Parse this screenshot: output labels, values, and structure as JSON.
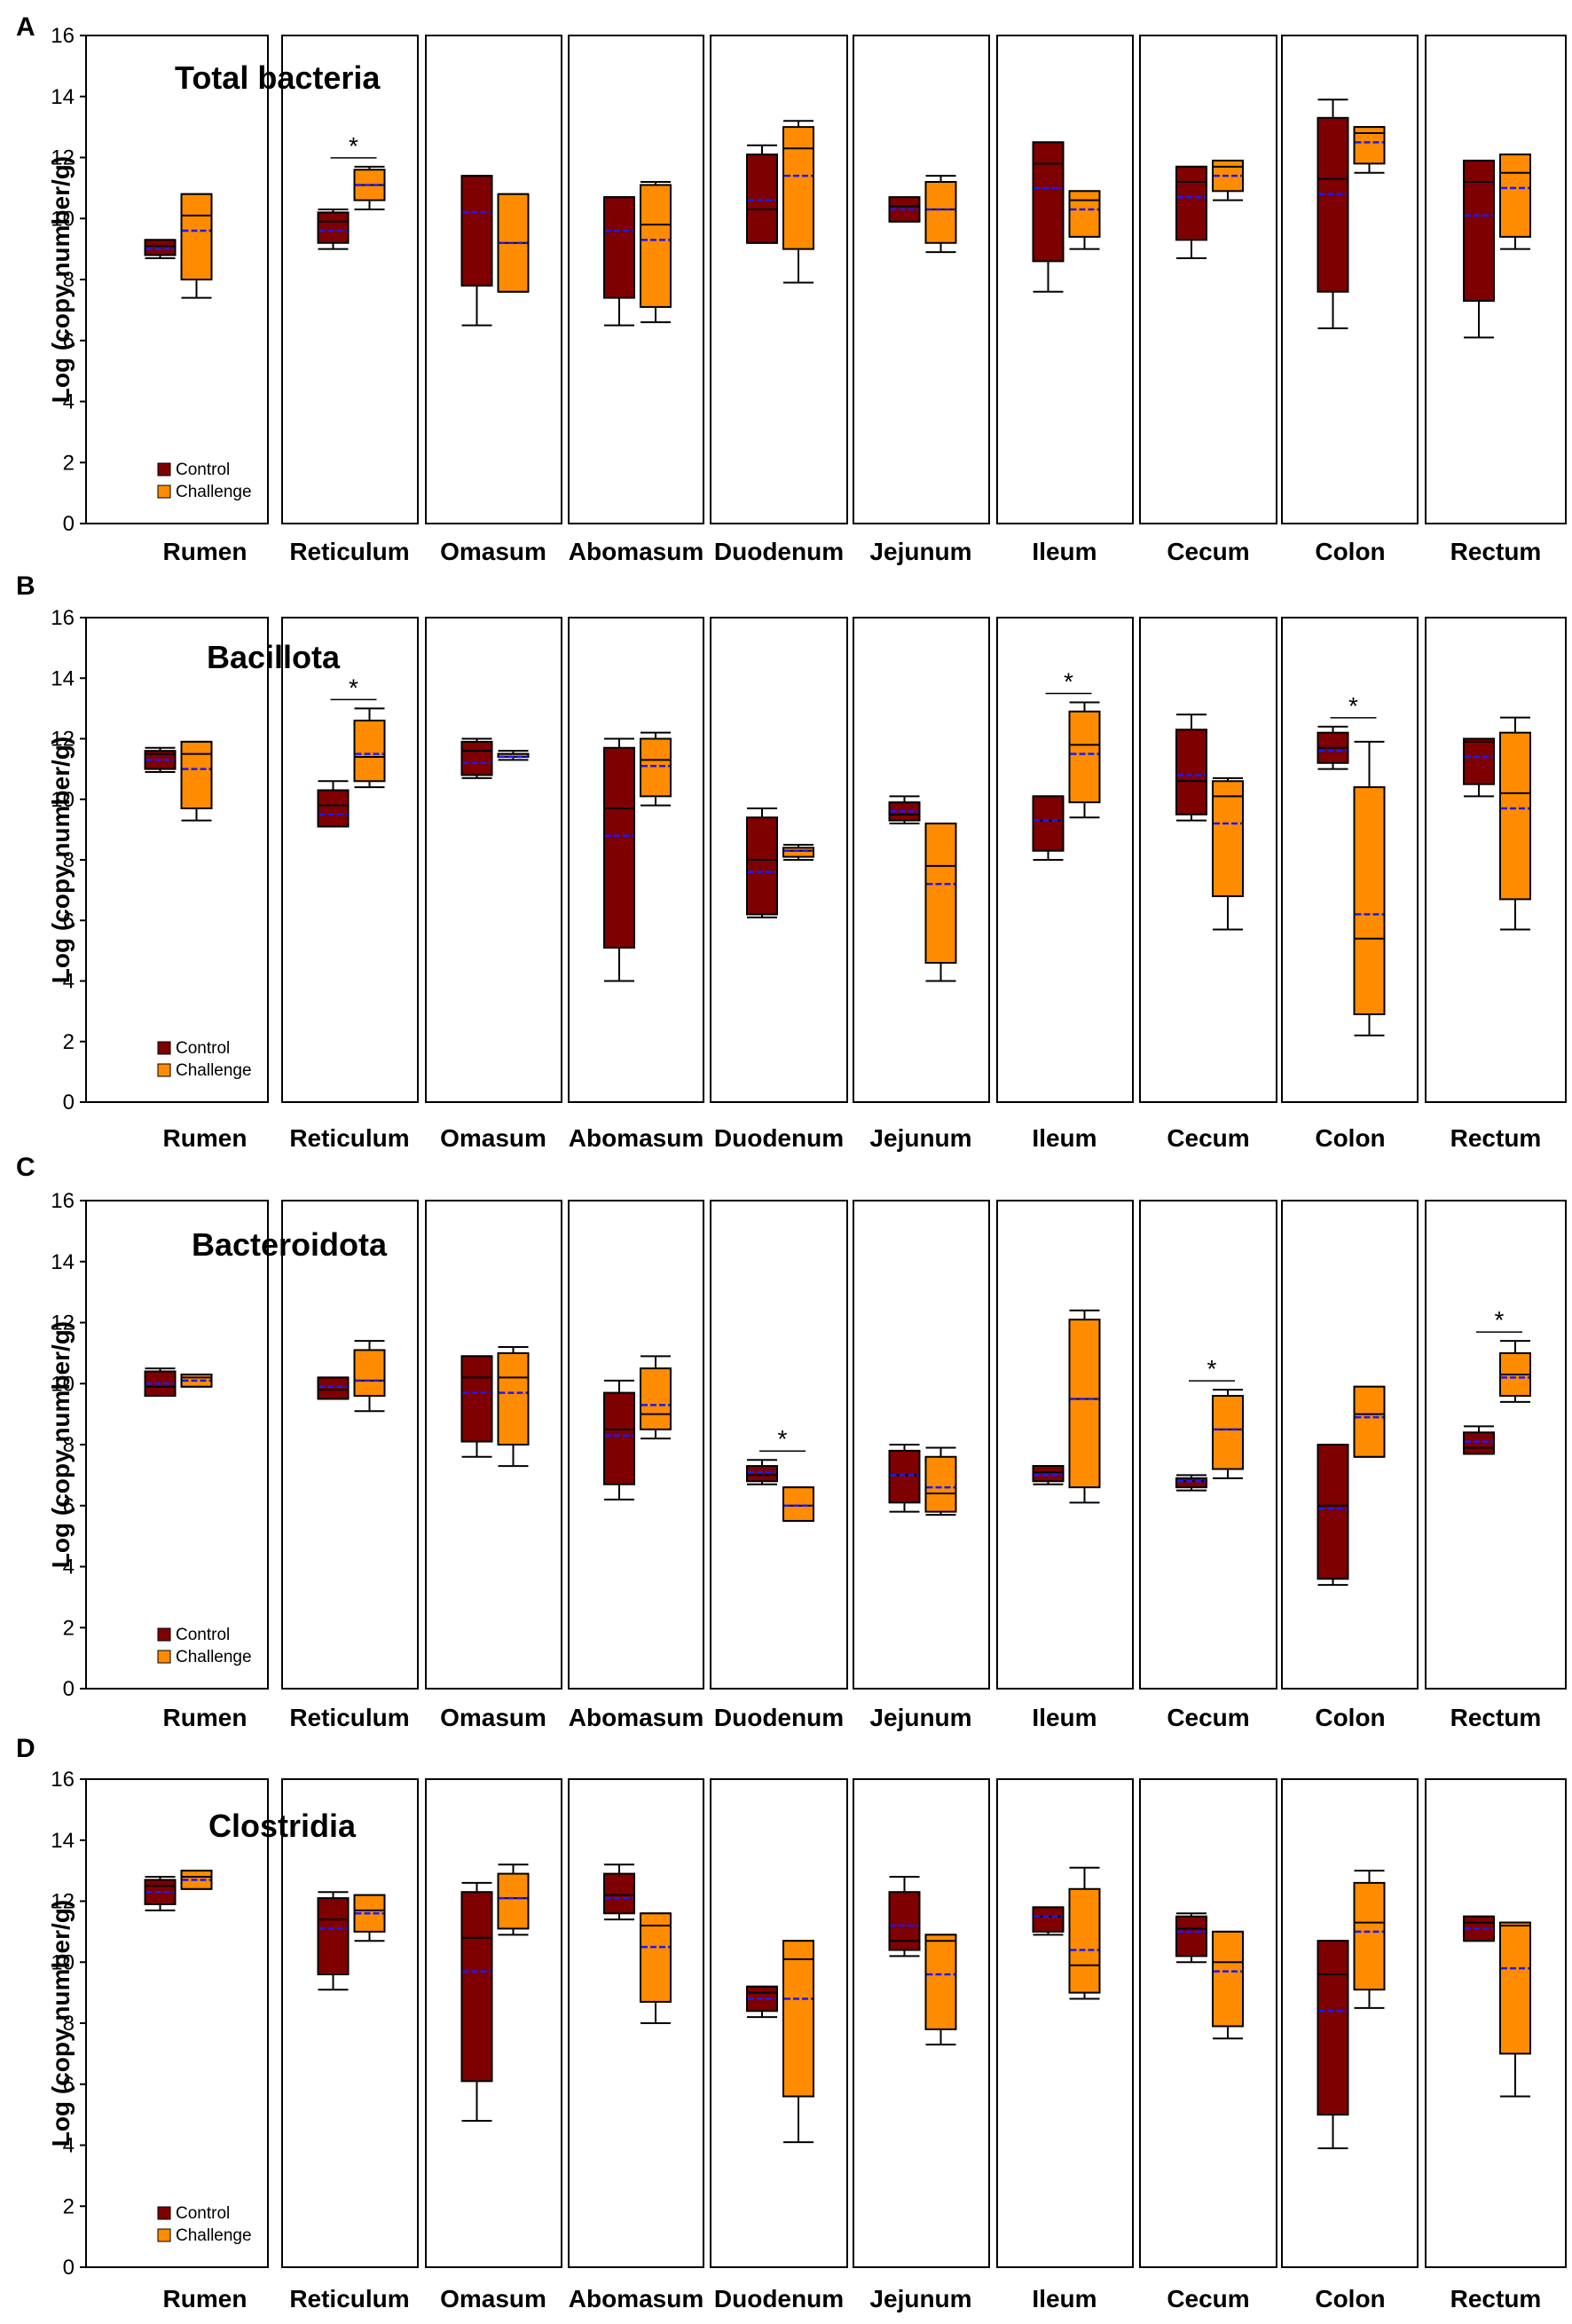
{
  "chart_data": [
    {
      "type": "box",
      "panel": "A",
      "title": "Total bacteria",
      "ylabel": "Log (copy number/g)",
      "ylim": [
        0,
        16
      ],
      "yticks": [
        0,
        2,
        4,
        6,
        8,
        10,
        12,
        14,
        16
      ],
      "categories": [
        "Rumen",
        "Reticulum",
        "Omasum",
        "Abomasum",
        "Duodenum",
        "Jejunum",
        "Ileum",
        "Cecum",
        "Colon",
        "Rectum"
      ],
      "legend": [
        {
          "name": "Control",
          "color": "#7f0000"
        },
        {
          "name": "Challenge",
          "color": "#ff8c00"
        }
      ],
      "series": [
        {
          "name": "Control",
          "boxes": [
            {
              "min": 8.7,
              "q1": 8.8,
              "median": 9.1,
              "q3": 9.3,
              "max": 9.3,
              "mean": 9.0
            },
            {
              "min": 9.0,
              "q1": 9.2,
              "median": 9.9,
              "q3": 10.2,
              "max": 10.3,
              "mean": 9.6
            },
            {
              "min": 6.5,
              "q1": 7.8,
              "median": 11.4,
              "q3": 11.4,
              "max": 11.4,
              "mean": 10.2
            },
            {
              "min": 6.5,
              "q1": 7.4,
              "median": 10.7,
              "q3": 10.7,
              "max": 10.7,
              "mean": 9.6
            },
            {
              "min": 9.2,
              "q1": 9.2,
              "median": 10.3,
              "q3": 12.1,
              "max": 12.4,
              "mean": 10.6
            },
            {
              "min": 9.9,
              "q1": 9.9,
              "median": 10.4,
              "q3": 10.7,
              "max": 10.7,
              "mean": 10.3
            },
            {
              "min": 7.6,
              "q1": 8.6,
              "median": 11.8,
              "q3": 12.5,
              "max": 12.5,
              "mean": 11.0
            },
            {
              "min": 8.7,
              "q1": 9.3,
              "median": 11.2,
              "q3": 11.7,
              "max": 11.7,
              "mean": 10.7
            },
            {
              "min": 6.4,
              "q1": 7.6,
              "median": 11.3,
              "q3": 13.3,
              "max": 13.9,
              "mean": 10.8
            },
            {
              "min": 6.1,
              "q1": 7.3,
              "median": 11.2,
              "q3": 11.9,
              "max": 11.9,
              "mean": 10.1
            }
          ]
        },
        {
          "name": "Challenge",
          "boxes": [
            {
              "min": 7.4,
              "q1": 8.0,
              "median": 10.1,
              "q3": 10.8,
              "max": 10.8,
              "mean": 9.6
            },
            {
              "min": 10.3,
              "q1": 10.6,
              "median": 11.1,
              "q3": 11.6,
              "max": 11.7,
              "mean": 11.1
            },
            {
              "min": 7.6,
              "q1": 7.6,
              "median": 9.2,
              "q3": 10.8,
              "max": 10.8,
              "mean": 9.2
            },
            {
              "min": 6.6,
              "q1": 7.1,
              "median": 9.8,
              "q3": 11.1,
              "max": 11.2,
              "mean": 9.3
            },
            {
              "min": 7.9,
              "q1": 9.0,
              "median": 12.3,
              "q3": 13.0,
              "max": 13.2,
              "mean": 11.4
            },
            {
              "min": 8.9,
              "q1": 9.2,
              "median": 10.3,
              "q3": 11.2,
              "max": 11.4,
              "mean": 10.3
            },
            {
              "min": 9.0,
              "q1": 9.4,
              "median": 10.6,
              "q3": 10.9,
              "max": 10.9,
              "mean": 10.3
            },
            {
              "min": 10.6,
              "q1": 10.9,
              "median": 11.7,
              "q3": 11.9,
              "max": 11.9,
              "mean": 11.4
            },
            {
              "min": 11.5,
              "q1": 11.8,
              "median": 12.8,
              "q3": 13.0,
              "max": 13.0,
              "mean": 12.5
            },
            {
              "min": 9.0,
              "q1": 9.4,
              "median": 11.5,
              "q3": 12.1,
              "max": 12.1,
              "mean": 11.0
            }
          ]
        }
      ],
      "significance": [
        {
          "category": "Reticulum",
          "label": "*"
        }
      ]
    },
    {
      "type": "box",
      "panel": "B",
      "title": "Bacillota",
      "ylabel": "Log (copy number/g)",
      "ylim": [
        0,
        16
      ],
      "yticks": [
        0,
        2,
        4,
        6,
        8,
        10,
        12,
        14,
        16
      ],
      "categories": [
        "Rumen",
        "Reticulum",
        "Omasum",
        "Abomasum",
        "Duodenum",
        "Jejunum",
        "Ileum",
        "Cecum",
        "Colon",
        "Rectum"
      ],
      "legend": [
        {
          "name": "Control",
          "color": "#7f0000"
        },
        {
          "name": "Challenge",
          "color": "#ff8c00"
        }
      ],
      "series": [
        {
          "name": "Control",
          "boxes": [
            {
              "min": 10.9,
              "q1": 11.0,
              "median": 11.5,
              "q3": 11.6,
              "max": 11.7,
              "mean": 11.3
            },
            {
              "min": 9.1,
              "q1": 9.1,
              "median": 9.8,
              "q3": 10.3,
              "max": 10.6,
              "mean": 9.5
            },
            {
              "min": 10.7,
              "q1": 10.8,
              "median": 11.6,
              "q3": 11.9,
              "max": 12.0,
              "mean": 11.2
            },
            {
              "min": 4.0,
              "q1": 5.1,
              "median": 9.7,
              "q3": 11.7,
              "max": 12.0,
              "mean": 8.8
            },
            {
              "min": 6.1,
              "q1": 6.2,
              "median": 8.0,
              "q3": 9.4,
              "max": 9.7,
              "mean": 7.6
            },
            {
              "min": 9.2,
              "q1": 9.3,
              "median": 9.5,
              "q3": 9.9,
              "max": 10.1,
              "mean": 9.6
            },
            {
              "min": 8.0,
              "q1": 8.3,
              "median": 9.3,
              "q3": 10.1,
              "max": 10.1,
              "mean": 9.3
            },
            {
              "min": 9.3,
              "q1": 9.5,
              "median": 10.6,
              "q3": 12.3,
              "max": 12.8,
              "mean": 10.8
            },
            {
              "min": 11.0,
              "q1": 11.2,
              "median": 11.7,
              "q3": 12.2,
              "max": 12.4,
              "mean": 11.6
            },
            {
              "min": 10.1,
              "q1": 10.5,
              "median": 11.9,
              "q3": 12.0,
              "max": 12.0,
              "mean": 11.4
            }
          ]
        },
        {
          "name": "Challenge",
          "boxes": [
            {
              "min": 9.3,
              "q1": 9.7,
              "median": 11.5,
              "q3": 11.9,
              "max": 11.9,
              "mean": 11.0
            },
            {
              "min": 10.4,
              "q1": 10.6,
              "median": 11.4,
              "q3": 12.6,
              "max": 13.0,
              "mean": 11.5
            },
            {
              "min": 11.3,
              "q1": 11.4,
              "median": 11.5,
              "q3": 11.5,
              "max": 11.6,
              "mean": 11.4
            },
            {
              "min": 9.8,
              "q1": 10.1,
              "median": 11.3,
              "q3": 12.0,
              "max": 12.2,
              "mean": 11.1
            },
            {
              "min": 8.0,
              "q1": 8.1,
              "median": 8.3,
              "q3": 8.4,
              "max": 8.5,
              "mean": 8.3
            },
            {
              "min": 4.0,
              "q1": 4.6,
              "median": 7.8,
              "q3": 9.2,
              "max": 9.2,
              "mean": 7.2
            },
            {
              "min": 9.4,
              "q1": 9.9,
              "median": 11.8,
              "q3": 12.9,
              "max": 13.2,
              "mean": 11.5
            },
            {
              "min": 5.7,
              "q1": 6.8,
              "median": 10.1,
              "q3": 10.6,
              "max": 10.7,
              "mean": 9.2
            },
            {
              "min": 2.2,
              "q1": 2.9,
              "median": 5.4,
              "q3": 10.4,
              "max": 11.9,
              "mean": 6.2
            },
            {
              "min": 5.7,
              "q1": 6.7,
              "median": 10.2,
              "q3": 12.2,
              "max": 12.7,
              "mean": 9.7
            }
          ]
        }
      ],
      "significance": [
        {
          "category": "Reticulum",
          "label": "*"
        },
        {
          "category": "Ileum",
          "label": "*"
        },
        {
          "category": "Colon",
          "label": "*"
        }
      ]
    },
    {
      "type": "box",
      "panel": "C",
      "title": "Bacteroidota",
      "ylabel": "Log (copy number/g)",
      "ylim": [
        0,
        16
      ],
      "yticks": [
        0,
        2,
        4,
        6,
        8,
        10,
        12,
        14,
        16
      ],
      "categories": [
        "Rumen",
        "Reticulum",
        "Omasum",
        "Abomasum",
        "Duodenum",
        "Jejunum",
        "Ileum",
        "Cecum",
        "Colon",
        "Rectum"
      ],
      "legend": [
        {
          "name": "Control",
          "color": "#7f0000"
        },
        {
          "name": "Challenge",
          "color": "#ff8c00"
        }
      ],
      "series": [
        {
          "name": "Control",
          "boxes": [
            {
              "min": 9.6,
              "q1": 9.6,
              "median": 9.9,
              "q3": 10.4,
              "max": 10.5,
              "mean": 10.0
            },
            {
              "min": 9.5,
              "q1": 9.5,
              "median": 9.8,
              "q3": 10.2,
              "max": 10.2,
              "mean": 9.9
            },
            {
              "min": 7.6,
              "q1": 8.1,
              "median": 10.2,
              "q3": 10.9,
              "max": 10.9,
              "mean": 9.7
            },
            {
              "min": 6.2,
              "q1": 6.7,
              "median": 8.5,
              "q3": 9.7,
              "max": 10.1,
              "mean": 8.3
            },
            {
              "min": 6.7,
              "q1": 6.8,
              "median": 7.0,
              "q3": 7.3,
              "max": 7.5,
              "mean": 7.1
            },
            {
              "min": 5.8,
              "q1": 6.1,
              "median": 7.0,
              "q3": 7.8,
              "max": 8.0,
              "mean": 7.0
            },
            {
              "min": 6.7,
              "q1": 6.8,
              "median": 7.1,
              "q3": 7.3,
              "max": 7.3,
              "mean": 7.0
            },
            {
              "min": 6.5,
              "q1": 6.6,
              "median": 6.8,
              "q3": 6.9,
              "max": 7.0,
              "mean": 6.8
            },
            {
              "min": 3.4,
              "q1": 3.6,
              "median": 6.0,
              "q3": 8.0,
              "max": 8.0,
              "mean": 5.9
            },
            {
              "min": 7.7,
              "q1": 7.7,
              "median": 7.9,
              "q3": 8.4,
              "max": 8.6,
              "mean": 8.1
            }
          ]
        },
        {
          "name": "Challenge",
          "boxes": [
            {
              "min": 9.9,
              "q1": 9.9,
              "median": 10.2,
              "q3": 10.3,
              "max": 10.3,
              "mean": 10.1
            },
            {
              "min": 9.1,
              "q1": 9.6,
              "median": 10.1,
              "q3": 11.1,
              "max": 11.4,
              "mean": 10.1
            },
            {
              "min": 7.3,
              "q1": 8.0,
              "median": 10.2,
              "q3": 11.0,
              "max": 11.2,
              "mean": 9.7
            },
            {
              "min": 8.2,
              "q1": 8.5,
              "median": 9.0,
              "q3": 10.5,
              "max": 10.9,
              "mean": 9.3
            },
            {
              "min": 5.5,
              "q1": 5.5,
              "median": 6.0,
              "q3": 6.6,
              "max": 6.6,
              "mean": 6.0
            },
            {
              "min": 5.7,
              "q1": 5.8,
              "median": 6.4,
              "q3": 7.6,
              "max": 7.9,
              "mean": 6.6
            },
            {
              "min": 6.1,
              "q1": 6.6,
              "median": 9.5,
              "q3": 12.1,
              "max": 12.4,
              "mean": 9.5
            },
            {
              "min": 6.9,
              "q1": 7.2,
              "median": 8.5,
              "q3": 9.6,
              "max": 9.8,
              "mean": 8.5
            },
            {
              "min": 7.6,
              "q1": 7.6,
              "median": 9.0,
              "q3": 9.9,
              "max": 9.9,
              "mean": 8.9
            },
            {
              "min": 9.4,
              "q1": 9.6,
              "median": 10.3,
              "q3": 11.0,
              "max": 11.4,
              "mean": 10.2
            }
          ]
        }
      ],
      "significance": [
        {
          "category": "Duodenum",
          "label": "*"
        },
        {
          "category": "Cecum",
          "label": "*"
        },
        {
          "category": "Rectum",
          "label": "*"
        }
      ]
    },
    {
      "type": "box",
      "panel": "D",
      "title": "Clostridia",
      "ylabel": "Log (copy number/g)",
      "ylim": [
        0,
        16
      ],
      "yticks": [
        0,
        2,
        4,
        6,
        8,
        10,
        12,
        14,
        16
      ],
      "categories": [
        "Rumen",
        "Reticulum",
        "Omasum",
        "Abomasum",
        "Duodenum",
        "Jejunum",
        "Ileum",
        "Cecum",
        "Colon",
        "Rectum"
      ],
      "legend": [
        {
          "name": "Control",
          "color": "#7f0000"
        },
        {
          "name": "Challenge",
          "color": "#ff8c00"
        }
      ],
      "series": [
        {
          "name": "Control",
          "boxes": [
            {
              "min": 11.7,
              "q1": 11.9,
              "median": 12.5,
              "q3": 12.7,
              "max": 12.8,
              "mean": 12.3
            },
            {
              "min": 9.1,
              "q1": 9.6,
              "median": 11.4,
              "q3": 12.1,
              "max": 12.3,
              "mean": 11.1
            },
            {
              "min": 4.8,
              "q1": 6.1,
              "median": 10.8,
              "q3": 12.3,
              "max": 12.6,
              "mean": 9.7
            },
            {
              "min": 11.4,
              "q1": 11.6,
              "median": 12.2,
              "q3": 12.9,
              "max": 13.2,
              "mean": 12.1
            },
            {
              "min": 8.2,
              "q1": 8.4,
              "median": 9.0,
              "q3": 9.2,
              "max": 9.2,
              "mean": 8.8
            },
            {
              "min": 10.2,
              "q1": 10.4,
              "median": 10.7,
              "q3": 12.3,
              "max": 12.8,
              "mean": 11.2
            },
            {
              "min": 10.9,
              "q1": 11.0,
              "median": 11.5,
              "q3": 11.8,
              "max": 11.8,
              "mean": 11.5
            },
            {
              "min": 10.0,
              "q1": 10.2,
              "median": 11.1,
              "q3": 11.5,
              "max": 11.6,
              "mean": 11.0
            },
            {
              "min": 3.9,
              "q1": 5.0,
              "median": 9.6,
              "q3": 10.7,
              "max": 10.7,
              "mean": 8.4
            },
            {
              "min": 10.7,
              "q1": 10.7,
              "median": 11.3,
              "q3": 11.5,
              "max": 11.5,
              "mean": 11.1
            }
          ]
        },
        {
          "name": "Challenge",
          "boxes": [
            {
              "min": 12.4,
              "q1": 12.4,
              "median": 12.8,
              "q3": 13.0,
              "max": 13.0,
              "mean": 12.7
            },
            {
              "min": 10.7,
              "q1": 11.0,
              "median": 11.7,
              "q3": 12.2,
              "max": 12.2,
              "mean": 11.6
            },
            {
              "min": 10.9,
              "q1": 11.1,
              "median": 12.1,
              "q3": 12.9,
              "max": 13.2,
              "mean": 12.1
            },
            {
              "min": 8.0,
              "q1": 8.7,
              "median": 11.2,
              "q3": 11.6,
              "max": 11.6,
              "mean": 10.5
            },
            {
              "min": 4.1,
              "q1": 5.6,
              "median": 10.1,
              "q3": 10.7,
              "max": 10.7,
              "mean": 8.8
            },
            {
              "min": 7.3,
              "q1": 7.8,
              "median": 10.7,
              "q3": 10.9,
              "max": 10.9,
              "mean": 9.6
            },
            {
              "min": 8.8,
              "q1": 9.0,
              "median": 9.9,
              "q3": 12.4,
              "max": 13.1,
              "mean": 10.4
            },
            {
              "min": 7.5,
              "q1": 7.9,
              "median": 10.0,
              "q3": 11.0,
              "max": 11.0,
              "mean": 9.7
            },
            {
              "min": 8.5,
              "q1": 9.1,
              "median": 11.3,
              "q3": 12.6,
              "max": 13.0,
              "mean": 11.0
            },
            {
              "min": 5.6,
              "q1": 7.0,
              "median": 11.2,
              "q3": 11.3,
              "max": 11.3,
              "mean": 9.8
            }
          ]
        }
      ],
      "significance": []
    }
  ]
}
